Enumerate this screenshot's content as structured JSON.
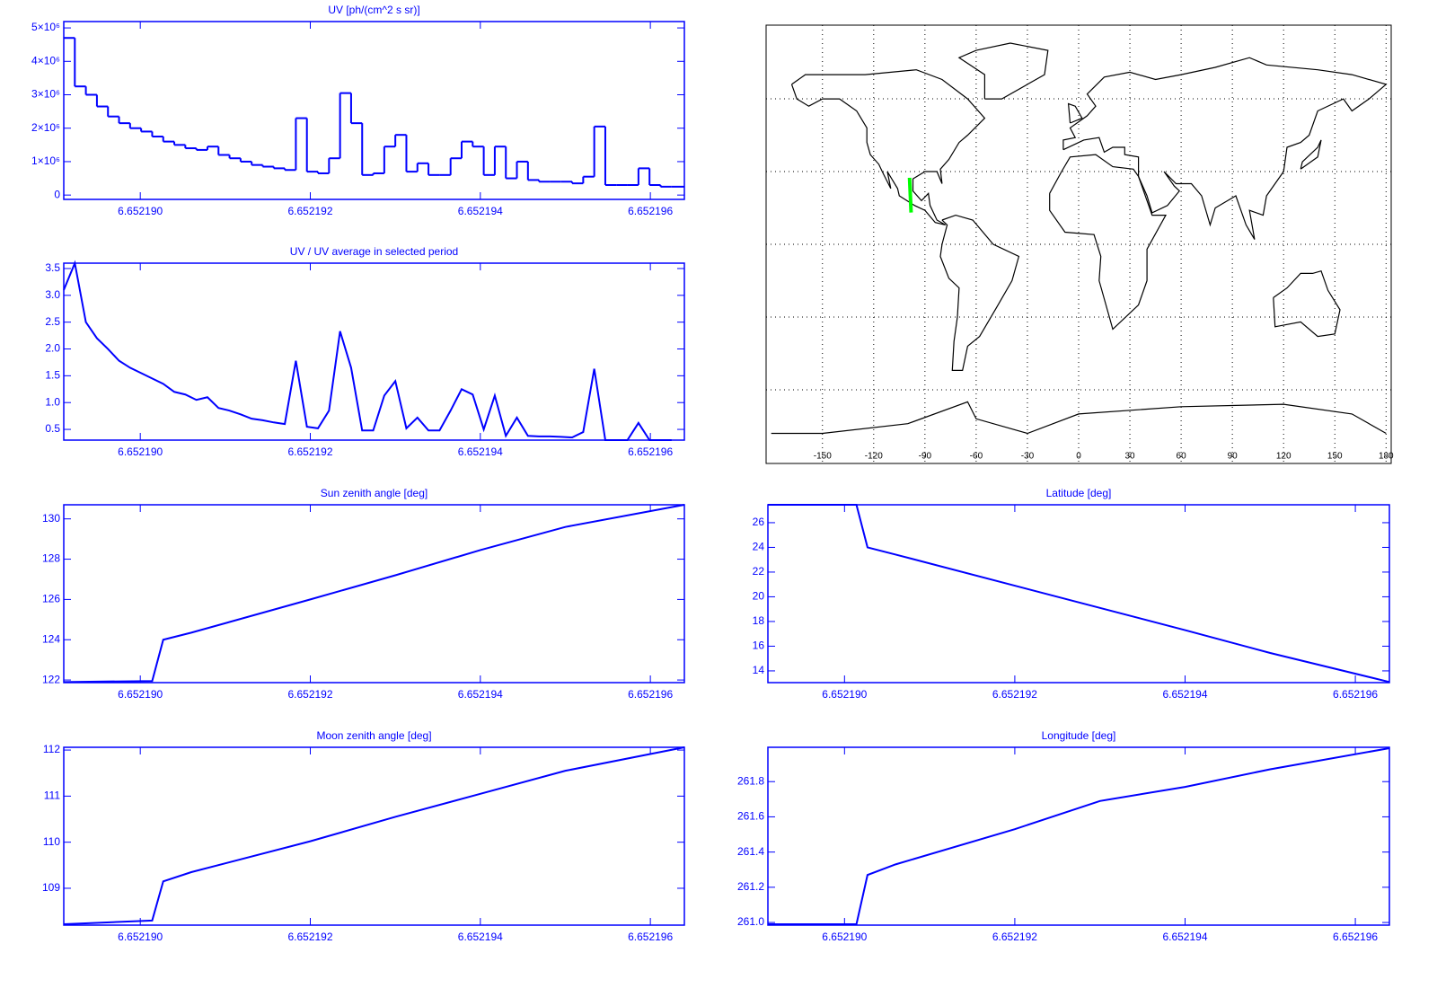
{
  "chart_data": [
    {
      "type": "step",
      "title": "UV [ph/(cm^2 s sr)]",
      "color": "#0000ff",
      "xlim": [
        6.6521891,
        6.6521964
      ],
      "xticks": [
        {
          "value": 6.65219,
          "label": "6.652190"
        },
        {
          "value": 6.652192,
          "label": "6.652192"
        },
        {
          "value": 6.652194,
          "label": "6.652194"
        },
        {
          "value": 6.652196,
          "label": "6.652196"
        }
      ],
      "ylim": [
        -130000,
        5190000
      ],
      "yticks": [
        0,
        {
          "value": 1000000,
          "label": "1×10⁶"
        },
        {
          "value": 2000000,
          "label": "2×10⁶"
        },
        {
          "value": 3000000,
          "label": "3×10⁶"
        },
        {
          "value": 4000000,
          "label": "4×10⁶"
        },
        {
          "value": 5000000,
          "label": "5×10⁶"
        }
      ],
      "x": [
        6.6521891,
        6.65218923,
        6.65218936,
        6.65218949,
        6.65218962,
        6.65218975,
        6.65218988,
        6.65219001,
        6.65219014,
        6.65219027,
        6.6521904,
        6.65219053,
        6.65219066,
        6.65219079,
        6.65219092,
        6.65219105,
        6.65219118,
        6.65219131,
        6.65219144,
        6.65219157,
        6.6521917,
        6.65219183,
        6.65219196,
        6.65219209,
        6.65219222,
        6.65219235,
        6.65219248,
        6.65219261,
        6.65219274,
        6.65219287,
        6.652193,
        6.65219313,
        6.65219326,
        6.65219339,
        6.65219352,
        6.65219365,
        6.65219378,
        6.65219391,
        6.65219404,
        6.65219417,
        6.6521943,
        6.65219443,
        6.65219456,
        6.65219469,
        6.65219482,
        6.65219495,
        6.65219508,
        6.65219521,
        6.65219534,
        6.65219547,
        6.6521956,
        6.65219573,
        6.65219586,
        6.65219599,
        6.65219612,
        6.65219625
      ],
      "values": [
        4700000,
        3250000,
        3000000,
        2650000,
        2350000,
        2150000,
        2000000,
        1900000,
        1750000,
        1600000,
        1500000,
        1400000,
        1350000,
        1450000,
        1200000,
        1100000,
        1000000,
        900000,
        850000,
        800000,
        750000,
        2300000,
        700000,
        650000,
        1100000,
        3050000,
        2150000,
        600000,
        650000,
        1450000,
        1800000,
        700000,
        950000,
        600000,
        600000,
        1100000,
        1600000,
        1450000,
        600000,
        1450000,
        500000,
        1000000,
        450000,
        400000,
        400000,
        400000,
        350000,
        550000,
        2050000,
        300000,
        300000,
        300000,
        800000,
        300000,
        250000,
        250000
      ]
    },
    {
      "type": "line",
      "title": "UV / UV average in selected period",
      "color": "#0000ff",
      "xlim": [
        6.6521891,
        6.6521964
      ],
      "xticks": [
        {
          "value": 6.65219,
          "label": "6.652190"
        },
        {
          "value": 6.652192,
          "label": "6.652192"
        },
        {
          "value": 6.652194,
          "label": "6.652194"
        },
        {
          "value": 6.652196,
          "label": "6.652196"
        }
      ],
      "ylim": [
        0.3,
        3.6
      ],
      "yticks": [
        0.5,
        {
          "value": 1,
          "label": "1.0"
        },
        1.5,
        {
          "value": 2,
          "label": "2.0"
        },
        2.5,
        {
          "value": 3,
          "label": "3.0"
        },
        3.5
      ],
      "x": [
        6.6521891,
        6.65218923,
        6.65218936,
        6.65218949,
        6.65218962,
        6.65218975,
        6.65218988,
        6.65219001,
        6.65219014,
        6.65219027,
        6.6521904,
        6.65219053,
        6.65219066,
        6.65219079,
        6.65219092,
        6.65219105,
        6.65219118,
        6.65219131,
        6.65219144,
        6.65219157,
        6.6521917,
        6.65219183,
        6.65219196,
        6.65219209,
        6.65219222,
        6.65219235,
        6.65219248,
        6.65219261,
        6.65219274,
        6.65219287,
        6.652193,
        6.65219313,
        6.65219326,
        6.65219339,
        6.65219352,
        6.65219365,
        6.65219378,
        6.65219391,
        6.65219404,
        6.65219417,
        6.6521943,
        6.65219443,
        6.65219456,
        6.65219469,
        6.65219482,
        6.65219495,
        6.65219508,
        6.65219521,
        6.65219534,
        6.65219547,
        6.6521956,
        6.65219573,
        6.65219586,
        6.65219599,
        6.65219612,
        6.65219625
      ],
      "values": [
        3.1,
        3.6,
        2.5,
        2.2,
        2.0,
        1.78,
        1.65,
        1.55,
        1.45,
        1.35,
        1.2,
        1.15,
        1.05,
        1.1,
        0.9,
        0.85,
        0.78,
        0.7,
        0.67,
        0.63,
        0.6,
        1.78,
        0.55,
        0.52,
        0.85,
        2.33,
        1.65,
        0.48,
        0.48,
        1.13,
        1.4,
        0.52,
        0.72,
        0.48,
        0.48,
        0.85,
        1.25,
        1.15,
        0.5,
        1.13,
        0.38,
        0.72,
        0.38,
        0.37,
        0.37,
        0.36,
        0.35,
        0.45,
        1.63,
        0.3,
        0.3,
        0.3,
        0.62,
        0.3,
        0.3,
        0.3
      ]
    },
    {
      "type": "map",
      "xlim": [
        -183,
        183
      ],
      "ylim": [
        -90.4,
        90.4
      ],
      "xticks": [
        -150,
        -120,
        -90,
        -60,
        -30,
        0,
        30,
        60,
        90,
        120,
        150,
        180
      ],
      "ygrid": [
        -60,
        -30,
        0,
        30,
        60
      ],
      "grid": true,
      "track": {
        "color": "#00ff00",
        "lon": [
          -99,
          -98.1
        ],
        "lat": [
          27.45,
          13.1
        ]
      }
    },
    {
      "type": "line",
      "title": "Sun zenith angle [deg]",
      "color": "#0000ff",
      "xlim": [
        6.6521891,
        6.6521964
      ],
      "xticks": [
        {
          "value": 6.65219,
          "label": "6.652190"
        },
        {
          "value": 6.652192,
          "label": "6.652192"
        },
        {
          "value": 6.652194,
          "label": "6.652194"
        },
        {
          "value": 6.652196,
          "label": "6.652196"
        }
      ],
      "ylim": [
        121.87,
        130.7
      ],
      "yticks": [
        122,
        124,
        126,
        128,
        130
      ],
      "x": [
        6.6521891,
        6.65219014,
        6.65219027,
        6.6521906,
        6.652192,
        6.652193,
        6.652194,
        6.652195,
        6.6521964
      ],
      "values": [
        121.9,
        121.95,
        124.0,
        124.35,
        126.0,
        127.2,
        128.45,
        129.6,
        130.7
      ]
    },
    {
      "type": "line",
      "title": "Latitude [deg]",
      "color": "#0000ff",
      "xlim": [
        6.6521891,
        6.6521964
      ],
      "xticks": [
        {
          "value": 6.65219,
          "label": "6.652190"
        },
        {
          "value": 6.652192,
          "label": "6.652192"
        },
        {
          "value": 6.652194,
          "label": "6.652194"
        },
        {
          "value": 6.652196,
          "label": "6.652196"
        }
      ],
      "ylim": [
        13.05,
        27.45
      ],
      "yticks": [
        14,
        16,
        18,
        20,
        22,
        24,
        26
      ],
      "x": [
        6.6521891,
        6.65219014,
        6.65219027,
        6.6521906,
        6.652192,
        6.652193,
        6.652194,
        6.652195,
        6.6521964
      ],
      "values": [
        27.45,
        27.45,
        24.0,
        23.42,
        20.9,
        19.1,
        17.3,
        15.45,
        13.1
      ]
    },
    {
      "type": "line",
      "title": "Moon zenith angle [deg]",
      "color": "#0000ff",
      "xlim": [
        6.6521891,
        6.6521964
      ],
      "xticks": [
        {
          "value": 6.65219,
          "label": "6.652190"
        },
        {
          "value": 6.652192,
          "label": "6.652192"
        },
        {
          "value": 6.652194,
          "label": "6.652194"
        },
        {
          "value": 6.652196,
          "label": "6.652196"
        }
      ],
      "ylim": [
        108.2,
        112.06
      ],
      "yticks": [
        109,
        110,
        111,
        112
      ],
      "x": [
        6.6521891,
        6.65219014,
        6.65219027,
        6.6521906,
        6.652192,
        6.652193,
        6.652194,
        6.652195,
        6.6521964
      ],
      "values": [
        108.22,
        108.3,
        109.15,
        109.35,
        110.02,
        110.55,
        111.05,
        111.55,
        112.06
      ]
    },
    {
      "type": "line",
      "title": "Longitude [deg]",
      "color": "#0000ff",
      "xlim": [
        6.6521891,
        6.6521964
      ],
      "xticks": [
        {
          "value": 6.65219,
          "label": "6.652190"
        },
        {
          "value": 6.652192,
          "label": "6.652192"
        },
        {
          "value": 6.652194,
          "label": "6.652194"
        },
        {
          "value": 6.652196,
          "label": "6.652196"
        }
      ],
      "ylim": [
        260.985,
        261.995
      ],
      "yticks": [
        {
          "value": 261,
          "label": "261.0"
        },
        261.2,
        261.4,
        261.6,
        261.8
      ],
      "x": [
        6.6521891,
        6.65219014,
        6.65219027,
        6.6521906,
        6.652192,
        6.652193,
        6.652194,
        6.652195,
        6.6521964
      ],
      "values": [
        260.99,
        260.99,
        261.27,
        261.33,
        261.53,
        261.69,
        261.77,
        261.87,
        261.99
      ]
    }
  ]
}
